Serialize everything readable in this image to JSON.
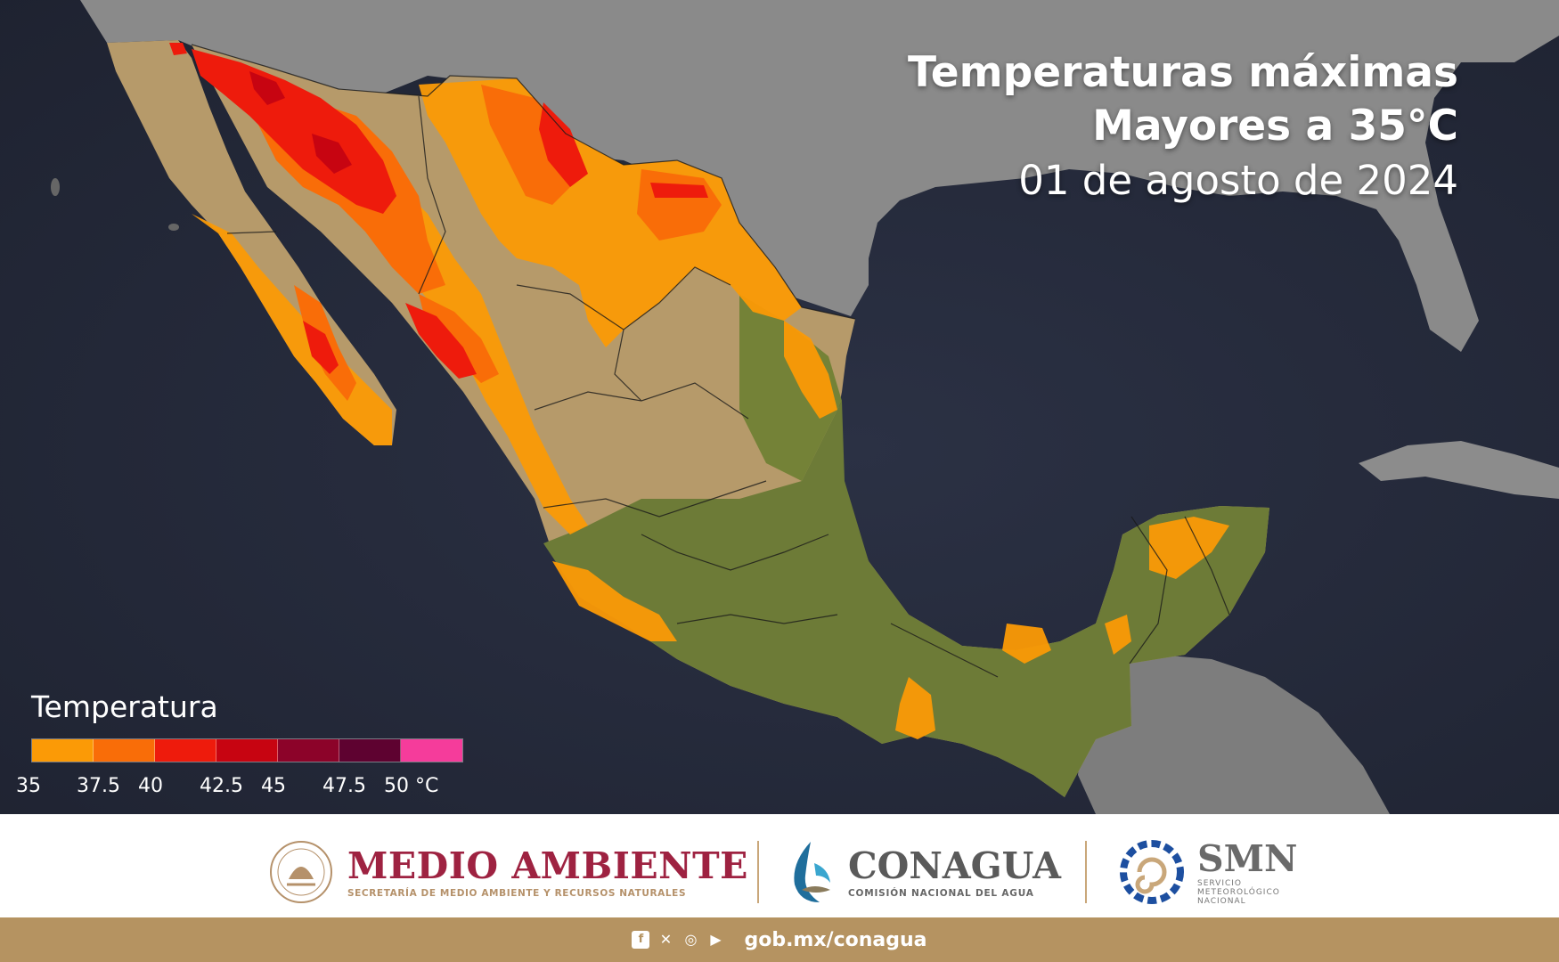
{
  "title": {
    "line1": "Temperaturas máximas",
    "line2": "Mayores a 35°C",
    "date": "01 de agosto de 2024"
  },
  "legend": {
    "title": "Temperatura",
    "colors": [
      "#fb9a06",
      "#f96d08",
      "#ee1b0c",
      "#c70411",
      "#8c0329",
      "#5e0230",
      "#f53c9b"
    ],
    "ticks": [
      "35",
      "37.5",
      "40",
      "42.5",
      "45",
      "47.5",
      "50 °C"
    ]
  },
  "map": {
    "ocean_color": "#252a3a",
    "land_green": "#6d7b37",
    "land_tan": "#b69a6a"
  },
  "footer": {
    "medio_ambiente": {
      "name": "MEDIO AMBIENTE",
      "subtitle": "SECRETARÍA DE MEDIO AMBIENTE Y RECURSOS NATURALES",
      "color": "#9e2241"
    },
    "conagua": {
      "name": "CONAGUA",
      "subtitle": "COMISIÓN NACIONAL DEL AGUA"
    },
    "smn": {
      "name": "SMN",
      "subtitle_lines": [
        "SERVICIO",
        "METEOROLÓGICO",
        "NACIONAL"
      ]
    },
    "bar_color": "#b59361",
    "social_icons": [
      "facebook-icon",
      "x-icon",
      "instagram-icon",
      "youtube-icon"
    ],
    "site": "gob.mx/conagua"
  }
}
